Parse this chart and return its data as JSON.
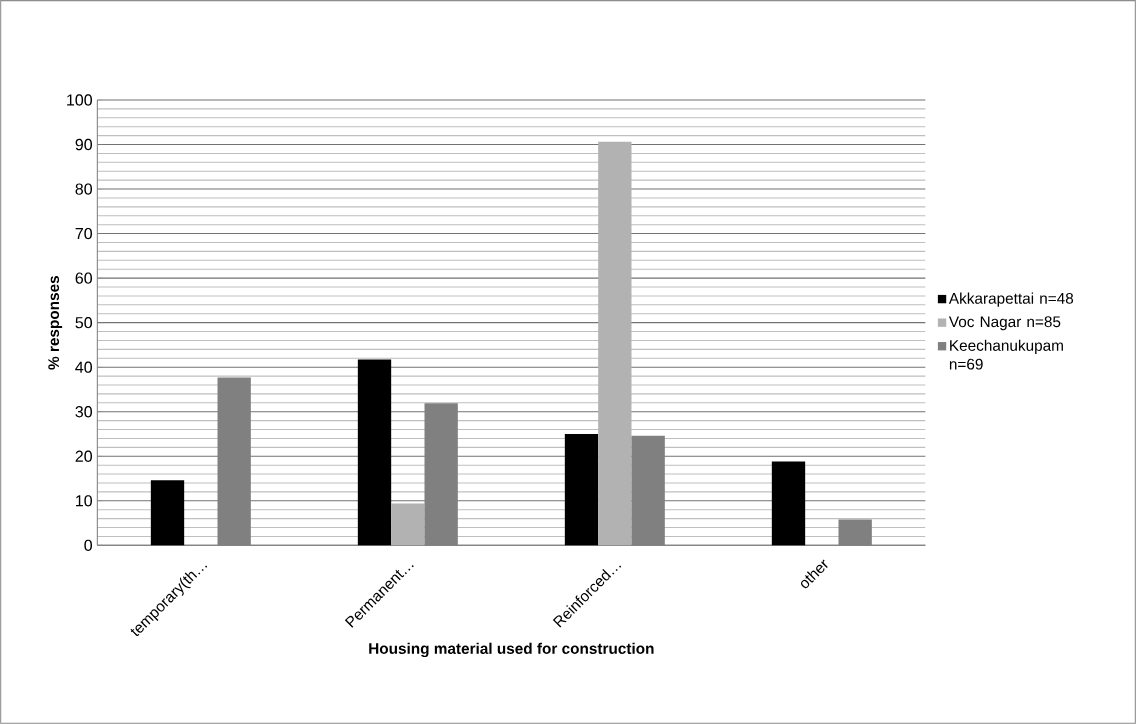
{
  "chart_data": {
    "type": "bar",
    "xlabel": "Housing material used for construction",
    "ylabel": "% responses",
    "categories": [
      "temporary(th…",
      "Permanent…",
      "Reinforced…",
      "other"
    ],
    "series": [
      {
        "name": "Akkarapettai n=48",
        "color": "#000000",
        "values": [
          14.6,
          41.7,
          25.0,
          18.8
        ]
      },
      {
        "name": "Voc Nagar n=85",
        "color": "#b2b2b2",
        "values": [
          0,
          9.4,
          90.6,
          0
        ]
      },
      {
        "name": "Keechanukupam n=69",
        "color": "#808080",
        "values": [
          37.7,
          31.9,
          24.6,
          5.8
        ]
      }
    ],
    "ylim": [
      0,
      100
    ],
    "yticks": [
      0,
      10,
      20,
      30,
      40,
      50,
      60,
      70,
      80,
      90,
      100
    ],
    "grid": "y",
    "legend": "right"
  }
}
